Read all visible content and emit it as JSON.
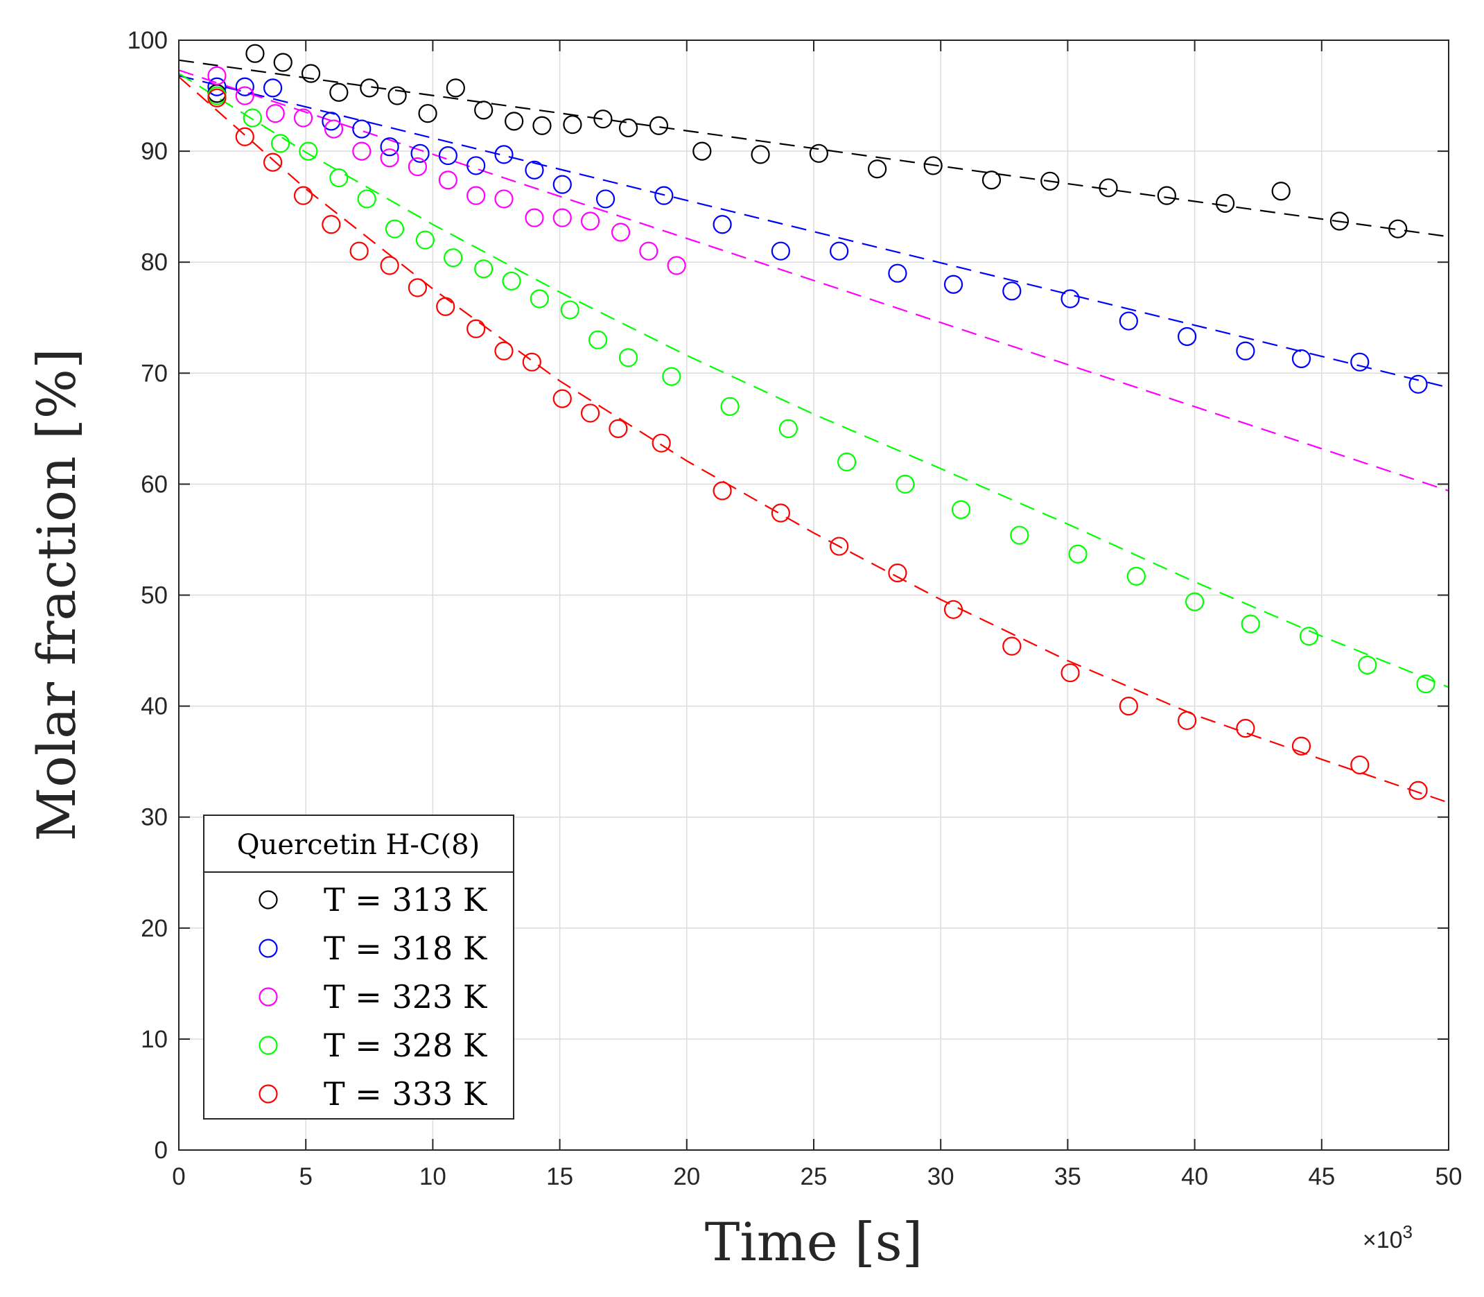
{
  "chart_data": {
    "type": "scatter",
    "xlabel": "Time [s]",
    "ylabel": "Molar fraction [%]",
    "x_multiplier_base": "×10",
    "x_multiplier_exp": "3",
    "xlim": [
      0,
      50
    ],
    "ylim": [
      0,
      100
    ],
    "xticks": [
      0,
      5,
      10,
      15,
      20,
      25,
      30,
      35,
      40,
      45,
      50
    ],
    "yticks": [
      0,
      10,
      20,
      30,
      40,
      50,
      60,
      70,
      80,
      90,
      100
    ],
    "grid": true,
    "legend": {
      "title": "Quercetin H-C(8)",
      "position": "bottom-left"
    },
    "series": [
      {
        "name": "T = 313 K",
        "color": "#000000",
        "fit": [
          [
            0,
            98.2
          ],
          [
            50,
            82.3
          ]
        ],
        "x": [
          1.5,
          3.0,
          4.1,
          5.2,
          6.3,
          7.5,
          8.6,
          9.8,
          10.9,
          12.0,
          13.2,
          14.3,
          15.5,
          16.7,
          17.7,
          18.9,
          20.6,
          22.9,
          25.2,
          27.5,
          29.7,
          32.0,
          34.3,
          36.6,
          38.9,
          41.2,
          43.4,
          45.7,
          48.0
        ],
        "y": [
          95.2,
          98.8,
          98.0,
          97.0,
          95.3,
          95.7,
          95.0,
          93.4,
          95.7,
          93.7,
          92.7,
          92.3,
          92.4,
          92.9,
          92.1,
          92.3,
          90.0,
          89.7,
          89.8,
          88.4,
          88.7,
          87.4,
          87.3,
          86.7,
          86.0,
          85.3,
          86.4,
          83.7,
          83.0
        ]
      },
      {
        "name": "T = 318 K",
        "color": "#0000ff",
        "fit": [
          [
            0,
            96.8
          ],
          [
            50,
            68.7
          ]
        ],
        "x": [
          1.5,
          2.6,
          3.7,
          6.0,
          7.2,
          8.3,
          9.5,
          10.6,
          11.7,
          12.8,
          14.0,
          15.1,
          16.8,
          19.1,
          21.4,
          23.7,
          26.0,
          28.3,
          30.5,
          32.8,
          35.1,
          37.4,
          39.7,
          42.0,
          44.2,
          46.5,
          48.8
        ],
        "y": [
          95.8,
          95.8,
          95.7,
          92.7,
          92.0,
          90.4,
          89.8,
          89.6,
          88.7,
          89.7,
          88.3,
          87.0,
          85.7,
          86.0,
          83.4,
          81.0,
          81.0,
          79.0,
          78.0,
          77.4,
          76.7,
          74.7,
          73.3,
          72.0,
          71.3,
          71.0,
          69.0
        ]
      },
      {
        "name": "T = 323 K",
        "color": "#ff00ff",
        "fit": [
          [
            0,
            97.3
          ],
          [
            50,
            59.4
          ]
        ],
        "x": [
          1.5,
          2.6,
          3.8,
          4.9,
          6.1,
          7.2,
          8.3,
          9.4,
          10.6,
          11.7,
          12.8,
          14.0,
          15.1,
          16.2,
          17.4,
          18.5,
          19.6
        ],
        "y": [
          96.8,
          95.0,
          93.4,
          93.0,
          92.0,
          90.0,
          89.4,
          88.6,
          87.4,
          86.0,
          85.7,
          84.0,
          84.0,
          83.7,
          82.7,
          81.0,
          79.7
        ]
      },
      {
        "name": "T = 328 K",
        "color": "#00ff00",
        "fit": [
          [
            0,
            97.0
          ],
          [
            5,
            89.9
          ],
          [
            10,
            83.4
          ],
          [
            15,
            77.3
          ],
          [
            20,
            71.6
          ],
          [
            25,
            66.3
          ],
          [
            30,
            61.4
          ],
          [
            35,
            56.4
          ],
          [
            40,
            51.2
          ],
          [
            45,
            46.3
          ],
          [
            50,
            41.7
          ]
        ],
        "x": [
          1.5,
          2.9,
          4.0,
          5.1,
          6.3,
          7.4,
          8.5,
          9.7,
          10.8,
          12.0,
          13.1,
          14.2,
          15.4,
          16.5,
          17.7,
          19.4,
          21.7,
          24.0,
          26.3,
          28.6,
          30.8,
          33.1,
          35.4,
          37.7,
          40.0,
          42.2,
          44.5,
          46.8,
          49.1
        ],
        "y": [
          95.0,
          93.0,
          90.7,
          90.0,
          87.6,
          85.7,
          83.0,
          82.0,
          80.4,
          79.4,
          78.3,
          76.7,
          75.7,
          73.0,
          71.4,
          69.7,
          67.0,
          65.0,
          62.0,
          60.0,
          57.7,
          55.4,
          53.7,
          51.7,
          49.4,
          47.4,
          46.3,
          43.7,
          42.0
        ]
      },
      {
        "name": "T = 333 K",
        "color": "#ff0000",
        "fit": [
          [
            0,
            96.7
          ],
          [
            5,
            86.6
          ],
          [
            10,
            77.6
          ],
          [
            15,
            69.3
          ],
          [
            20,
            62.1
          ],
          [
            25,
            55.6
          ],
          [
            30,
            49.6
          ],
          [
            35,
            44.1
          ],
          [
            40,
            39.2
          ],
          [
            45,
            35.2
          ],
          [
            50,
            31.3
          ]
        ],
        "x": [
          1.5,
          2.6,
          3.7,
          4.9,
          6.0,
          7.1,
          8.3,
          9.4,
          10.5,
          11.7,
          12.8,
          13.9,
          15.1,
          16.2,
          17.3,
          19.0,
          21.4,
          23.7,
          26.0,
          28.3,
          30.5,
          32.8,
          35.1,
          37.4,
          39.7,
          42.0,
          44.2,
          46.5,
          48.8
        ],
        "y": [
          94.8,
          91.3,
          89.0,
          86.0,
          83.4,
          81.0,
          79.7,
          77.7,
          76.0,
          74.0,
          72.0,
          71.0,
          67.7,
          66.4,
          65.0,
          63.7,
          59.4,
          57.4,
          54.4,
          52.0,
          48.7,
          45.4,
          43.0,
          40.0,
          38.7,
          38.0,
          36.4,
          34.7,
          32.4
        ]
      }
    ]
  }
}
